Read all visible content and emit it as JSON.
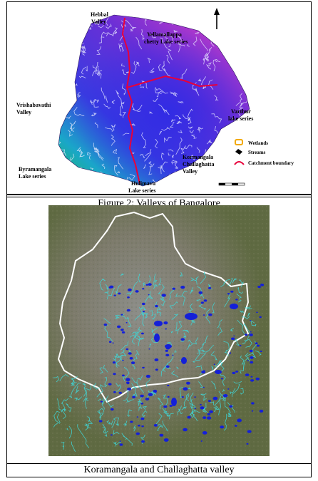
{
  "figure1": {
    "caption": "Figure 2: Valleys of Bangalore",
    "labels": {
      "hebbal": [
        "Hebbal",
        "Valley"
      ],
      "yellamallappa": [
        "Yellamallappa",
        "chetty Lake series"
      ],
      "vrishabavathi": [
        "Vrishabavathi",
        "Valley"
      ],
      "varthur": [
        "Varthur",
        "lake series"
      ],
      "kormangala": [
        "Kormangala",
        "Challaghatta",
        "Valley"
      ],
      "byramangala": [
        "Byramangala",
        "Lake series"
      ],
      "hulimavu": [
        "Hulimavu",
        "Lake series"
      ]
    },
    "legend": {
      "wetlands": "Wetlands",
      "streams": "Streams",
      "catchment": "Catchment boundary"
    },
    "colors": {
      "catchment_boundary": "#e8003a",
      "wetland_symbol": "#f2a900"
    },
    "icons": [
      "north-arrow-icon",
      "scale-bar-icon"
    ]
  },
  "figure2": {
    "caption": "Koramangala and Challaghatta valley",
    "colors": {
      "boundary": "#ffffff",
      "streams": "#3fd7d7",
      "wetlands": "#1420d8"
    }
  }
}
